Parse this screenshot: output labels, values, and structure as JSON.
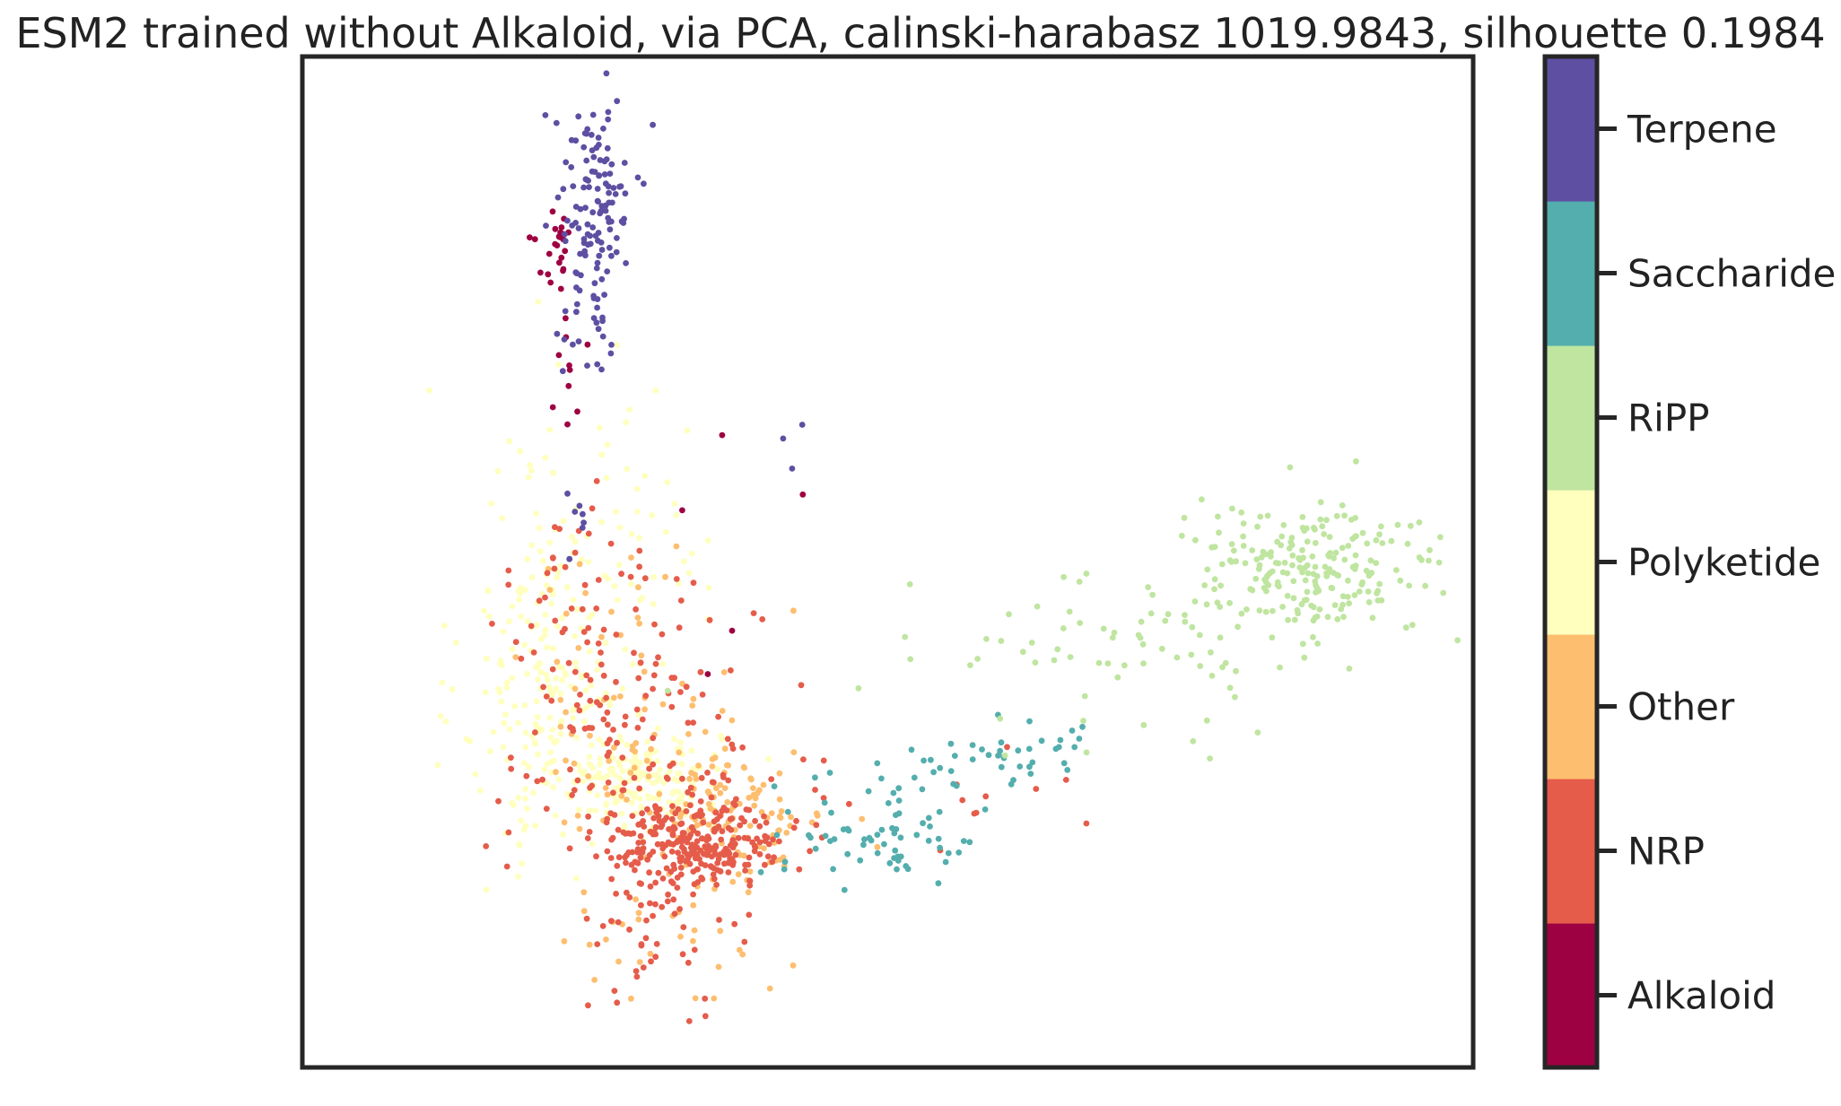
{
  "chart_data": {
    "type": "scatter",
    "title": "ESM2 trained without Alkaloid, via PCA, calinski-harabasz 1019.9843, silhouette 0.1984",
    "xlabel": "",
    "ylabel": "",
    "axis_ticks_visible": false,
    "grid": false,
    "xlim": [
      -4,
      12
    ],
    "ylim": [
      -7,
      7
    ],
    "legend": "colorbar-right",
    "colorbar": {
      "labels": [
        "Alkaloid",
        "NRP",
        "Other",
        "Polyketide",
        "RiPP",
        "Saccharide",
        "Terpene"
      ],
      "colors": [
        "#9e0142",
        "#e55c4b",
        "#fdbe6f",
        "#ffffbe",
        "#bfe5a0",
        "#54aead",
        "#5e4fa2"
      ]
    },
    "series": [
      {
        "name": "Terpene",
        "color": "#5e4fa2",
        "approx_points": 150,
        "clusters": [
          {
            "center": [
              0.0,
              5.0
            ],
            "spread": [
              0.25,
              0.75
            ],
            "n": 120
          },
          {
            "center": [
              -0.1,
              3.1
            ],
            "spread": [
              0.25,
              0.35
            ],
            "n": 20
          },
          {
            "center": [
              2.6,
              1.5
            ],
            "spread": [
              0.2,
              0.4
            ],
            "n": 3
          },
          {
            "center": [
              -0.3,
              0.7
            ],
            "spread": [
              0.15,
              0.3
            ],
            "n": 7
          }
        ]
      },
      {
        "name": "Alkaloid",
        "color": "#9e0142",
        "approx_points": 40,
        "clusters": [
          {
            "center": [
              -0.5,
              4.3
            ],
            "spread": [
              0.15,
              0.3
            ],
            "n": 25
          },
          {
            "center": [
              -0.35,
              2.8
            ],
            "spread": [
              0.1,
              0.5
            ],
            "n": 10
          },
          {
            "center": [
              1.7,
              0.3
            ],
            "spread": [
              0.8,
              0.9
            ],
            "n": 5
          }
        ]
      },
      {
        "name": "Polyketide",
        "color": "#ffffbe",
        "approx_points": 430,
        "clusters": [
          {
            "center": [
              0.6,
              -3.0
            ],
            "spread": [
              0.55,
              0.35
            ],
            "n": 170
          },
          {
            "center": [
              -0.6,
              -1.8
            ],
            "spread": [
              0.6,
              1.2
            ],
            "n": 200
          },
          {
            "center": [
              0.3,
              0.8
            ],
            "spread": [
              1.0,
              1.0
            ],
            "n": 60
          }
        ]
      },
      {
        "name": "NRP",
        "color": "#e55c4b",
        "approx_points": 500,
        "clusters": [
          {
            "center": [
              1.4,
              -3.9
            ],
            "spread": [
              0.6,
              0.3
            ],
            "n": 260
          },
          {
            "center": [
              0.5,
              -2.6
            ],
            "spread": [
              0.9,
              1.0
            ],
            "n": 140
          },
          {
            "center": [
              1.0,
              -5.0
            ],
            "spread": [
              0.5,
              0.5
            ],
            "n": 45
          },
          {
            "center": [
              -0.3,
              -0.6
            ],
            "spread": [
              0.5,
              1.0
            ],
            "n": 40
          },
          {
            "center": [
              4.0,
              -3.0
            ],
            "spread": [
              1.3,
              0.7
            ],
            "n": 15
          }
        ]
      },
      {
        "name": "Other",
        "color": "#fdbe6f",
        "approx_points": 220,
        "clusters": [
          {
            "center": [
              1.8,
              -3.5
            ],
            "spread": [
              0.7,
              0.5
            ],
            "n": 130
          },
          {
            "center": [
              0.4,
              -1.7
            ],
            "spread": [
              0.8,
              1.0
            ],
            "n": 60
          },
          {
            "center": [
              1.0,
              -5.3
            ],
            "spread": [
              0.8,
              0.4
            ],
            "n": 30
          }
        ]
      },
      {
        "name": "Saccharide",
        "color": "#54aead",
        "approx_points": 110,
        "clusters": [
          {
            "center": [
              4.0,
              -3.7
            ],
            "spread": [
              0.7,
              0.35
            ],
            "n": 70
          },
          {
            "center": [
              5.6,
              -2.7
            ],
            "spread": [
              0.7,
              0.25
            ],
            "n": 40
          }
        ]
      },
      {
        "name": "RiPP",
        "color": "#bfe5a0",
        "approx_points": 290,
        "clusters": [
          {
            "center": [
              9.8,
              -0.1
            ],
            "spread": [
              0.9,
              0.45
            ],
            "n": 220
          },
          {
            "center": [
              7.2,
              -1.3
            ],
            "spread": [
              1.5,
              0.55
            ],
            "n": 70
          }
        ]
      }
    ]
  }
}
